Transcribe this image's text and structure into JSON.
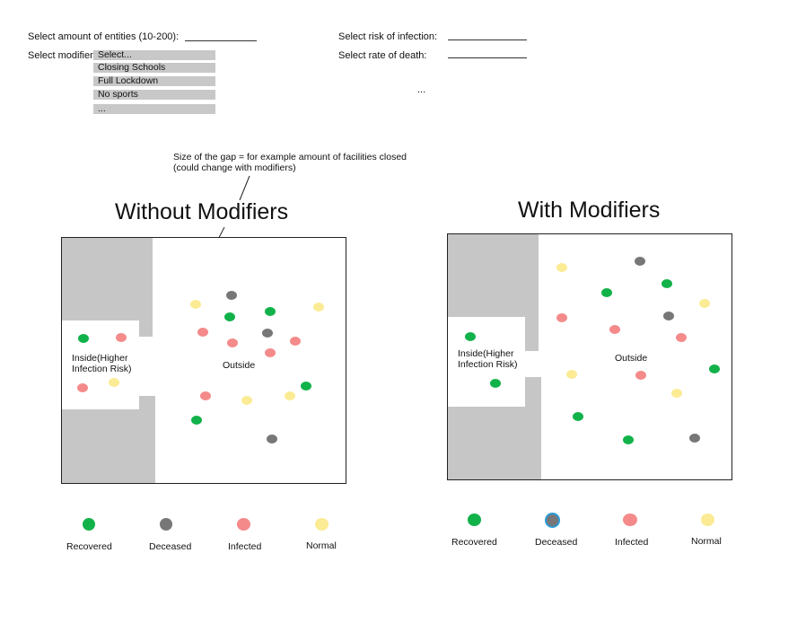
{
  "controls": {
    "entities_label": "Select amount of entities (10-200):",
    "modifier_label": "Select modifier:",
    "risk_label": "Select risk of infection:",
    "death_label": "Select rate of death:",
    "more_ellipsis": "...",
    "modifier_options": [
      "Select...",
      "Closing Schools",
      "Full Lockdown",
      "No sports",
      "..."
    ]
  },
  "annotation": {
    "line1": "Size of the gap =  for example amount of facilities closed",
    "line2": "(could change with modifiers)"
  },
  "colors": {
    "recovered": "#12b24a",
    "deceased": "#777777",
    "infected": "#f48a8a",
    "normal": "#fbeb94",
    "wall": "#c6c6c6",
    "deceased_alt_border": "#2a9bd8"
  },
  "panels": {
    "without": {
      "title": "Without Modifiers",
      "inside_line1": "Inside(Higher",
      "inside_line2": "Infection Risk)",
      "outside": "Outside",
      "legend": {
        "recovered": "Recovered",
        "deceased": "Deceased",
        "infected": "Infected",
        "normal": "Normal"
      }
    },
    "with": {
      "title": "With Modifiers",
      "inside_line1": "Inside(Higher",
      "inside_line2": "Infection Risk)",
      "outside": "Outside",
      "legend": {
        "recovered": "Recovered",
        "deceased": "Deceased",
        "infected": "Infected",
        "normal": "Normal"
      }
    }
  }
}
